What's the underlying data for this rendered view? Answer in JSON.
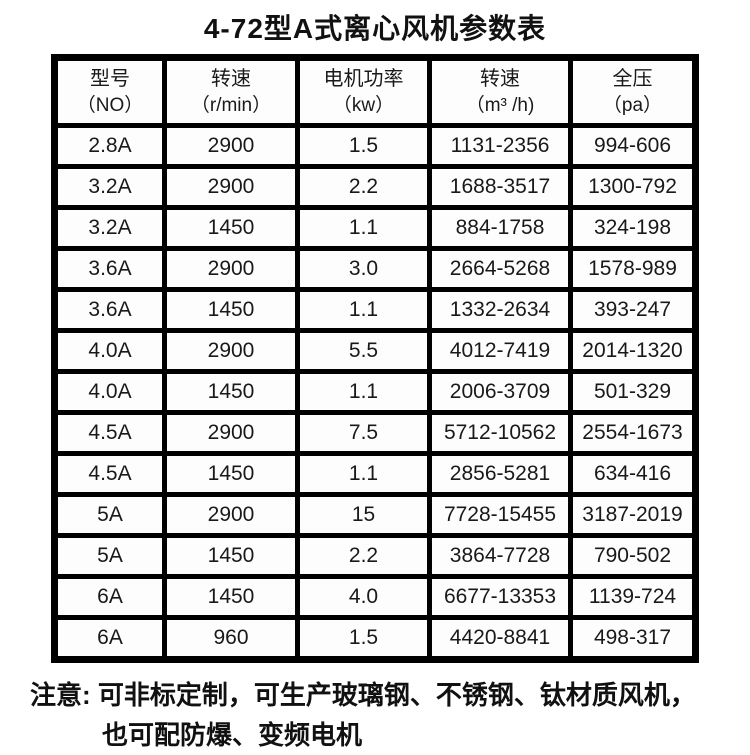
{
  "title": "4-72型A式离心风机参数表",
  "table": {
    "headers": [
      {
        "label": "型号",
        "unit": "（NO）"
      },
      {
        "label": "转速",
        "unit": "（r/min）"
      },
      {
        "label": "电机功率",
        "unit": "（kw）"
      },
      {
        "label": "转速",
        "unit": "（m³ /h)"
      },
      {
        "label": "全压",
        "unit": "（pa）"
      }
    ],
    "rows": [
      [
        "2.8A",
        "2900",
        "1.5",
        "1131-2356",
        "994-606"
      ],
      [
        "3.2A",
        "2900",
        "2.2",
        "1688-3517",
        "1300-792"
      ],
      [
        "3.2A",
        "1450",
        "1.1",
        "884-1758",
        "324-198"
      ],
      [
        "3.6A",
        "2900",
        "3.0",
        "2664-5268",
        "1578-989"
      ],
      [
        "3.6A",
        "1450",
        "1.1",
        "1332-2634",
        "393-247"
      ],
      [
        "4.0A",
        "2900",
        "5.5",
        "4012-7419",
        "2014-1320"
      ],
      [
        "4.0A",
        "1450",
        "1.1",
        "2006-3709",
        "501-329"
      ],
      [
        "4.5A",
        "2900",
        "7.5",
        "5712-10562",
        "2554-1673"
      ],
      [
        "4.5A",
        "1450",
        "1.1",
        "2856-5281",
        "634-416"
      ],
      [
        "5A",
        "2900",
        "15",
        "7728-15455",
        "3187-2019"
      ],
      [
        "5A",
        "1450",
        "2.2",
        "3864-7728",
        "790-502"
      ],
      [
        "6A",
        "1450",
        "4.0",
        "6677-13353",
        "1139-724"
      ],
      [
        "6A",
        "960",
        "1.5",
        "4420-8841",
        "498-317"
      ]
    ]
  },
  "note": {
    "line1": "注意: 可非标定制，可生产玻璃钢、不锈钢、钛材质风机，",
    "line2": "也可配防爆、变频电机"
  }
}
